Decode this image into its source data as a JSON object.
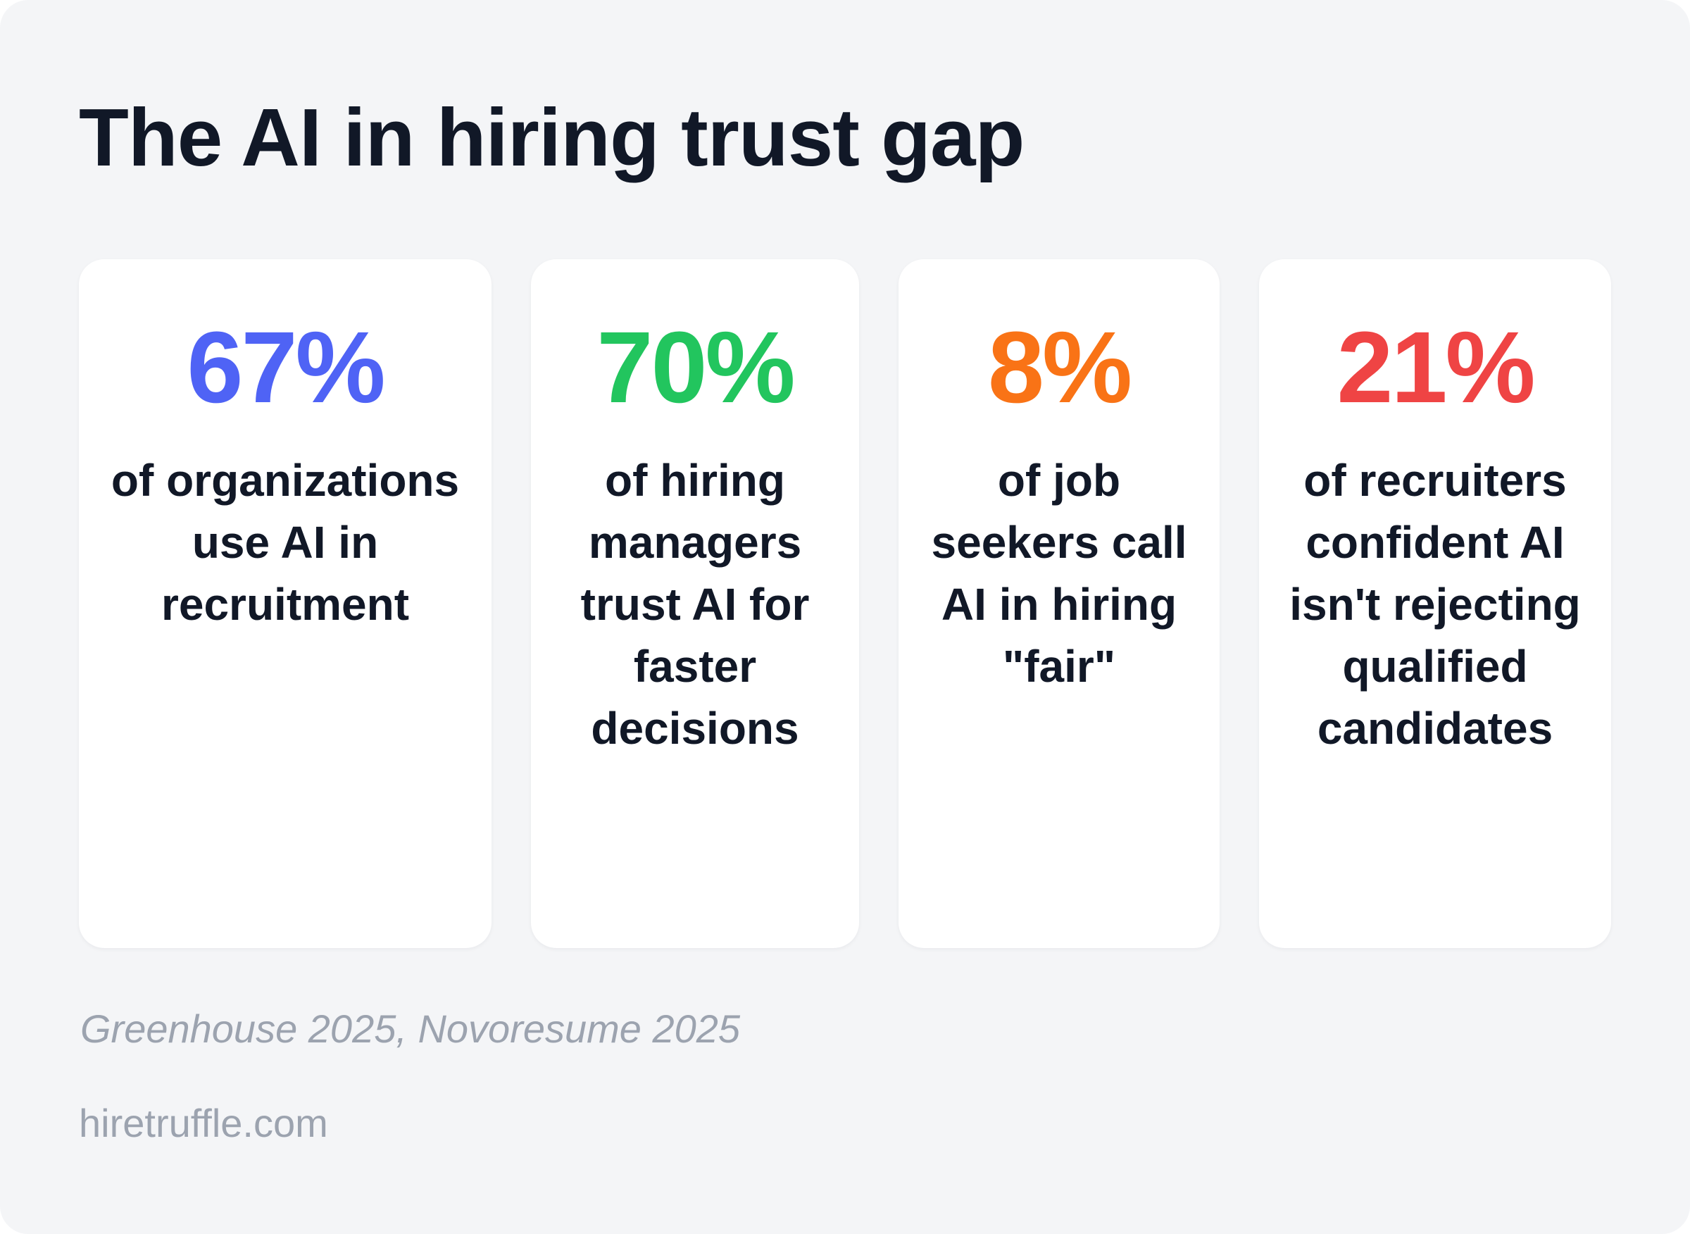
{
  "title": "The AI in hiring trust gap",
  "stats": [
    {
      "value": "67%",
      "label": "of organizations use AI in recruitment",
      "color": "#4f63f5"
    },
    {
      "value": "70%",
      "label": "of hiring managers trust AI for faster decisions",
      "color": "#22c55e"
    },
    {
      "value": "8%",
      "label": "of job seekers call AI in hiring \"fair\"",
      "color": "#f97316"
    },
    {
      "value": "21%",
      "label": "of recruiters confident AI isn't rejecting qualified candidates",
      "color": "#ef4444"
    }
  ],
  "source": "Greenhouse 2025, Novoresume 2025",
  "site": "hiretruffle.com"
}
